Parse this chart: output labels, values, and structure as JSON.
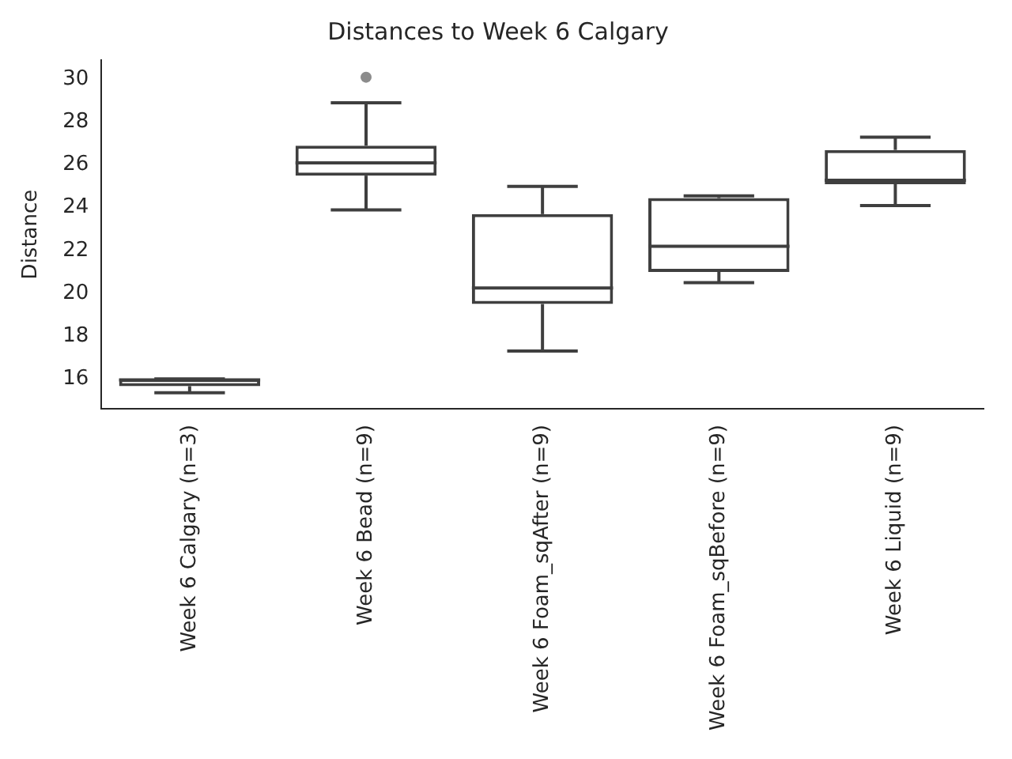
{
  "chart_data": {
    "type": "box",
    "title": "Distances to Week 6 Calgary",
    "ylabel": "Distance",
    "categories": [
      "Week 6 Calgary (n=3)",
      "Week 6 Bead (n=9)",
      "Week 6 Foam_sqAfter (n=9)",
      "Week 6 Foam_sqBefore (n=9)",
      "Week 6 Liquid (n=9)"
    ],
    "color": "#3f3f3f",
    "boxes": [
      {
        "low": 15.35,
        "q1": 15.66,
        "median": 15.95,
        "q3": 16.0,
        "high": 16.0
      },
      {
        "low": 23.9,
        "q1": 25.5,
        "median": 26.1,
        "q3": 26.9,
        "high": 28.9,
        "outliers": [
          30.1
        ]
      },
      {
        "low": 17.3,
        "q1": 19.5,
        "median": 20.25,
        "q3": 23.7,
        "high": 25.0
      },
      {
        "low": 20.5,
        "q1": 21.0,
        "median": 22.2,
        "q3": 24.45,
        "high": 24.55
      },
      {
        "low": 24.1,
        "q1": 25.1,
        "median": 25.28,
        "q3": 26.7,
        "high": 27.3
      }
    ],
    "ylim": [
      14.6,
      30.9
    ],
    "yticks": [
      16,
      18,
      20,
      22,
      24,
      26,
      28,
      30
    ],
    "grid": false,
    "legend": false
  }
}
